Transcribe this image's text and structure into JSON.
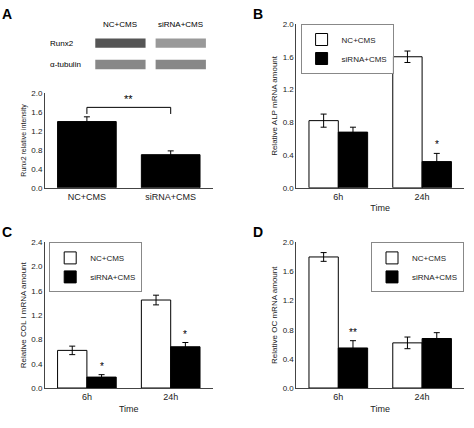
{
  "chart_data": [
    {
      "type": "bar",
      "title": "A",
      "categories": [
        "NC+CMS",
        "siRNA+CMS"
      ],
      "values": [
        1.4,
        0.7
      ],
      "errors": [
        0.1,
        0.08
      ],
      "color": "black",
      "ylabel": "Runx2 relative intensity",
      "ylim": [
        0,
        2.0
      ],
      "yticks": [
        {
          "value": 0.0,
          "label": "0.0"
        },
        0.4,
        0.8,
        1.2,
        1.6,
        {
          "value": 2.0,
          "label": "2.0"
        }
      ],
      "grid": false,
      "annotations": [
        {
          "text": "**",
          "between": [
            "NC+CMS",
            "siRNA+CMS"
          ]
        },
        {
          "text": "Runx2"
        },
        {
          "text": "α-tubulin"
        }
      ]
    },
    {
      "type": "bar",
      "title": "B",
      "categories": [
        "6h",
        "24h"
      ],
      "series": [
        {
          "name": "NC+CMS",
          "color": "white",
          "values": [
            0.82,
            1.6
          ],
          "errors": [
            0.08,
            0.07
          ]
        },
        {
          "name": "siRNA+CMS",
          "color": "black",
          "values": [
            0.68,
            0.32
          ],
          "errors": [
            0.06,
            0.1
          ]
        }
      ],
      "xlabel": "Time",
      "ylabel": "Relative ALP mRNA amount",
      "ylim": [
        0,
        2.0
      ],
      "yticks": [
        {
          "value": 0.0,
          "label": "0.0"
        },
        0.4,
        0.8,
        1.2,
        1.6,
        {
          "value": 2.0,
          "label": "2.0"
        }
      ],
      "grid": false,
      "legend": "upper left",
      "annotations": [
        {
          "text": "*",
          "category": "24h",
          "series": "siRNA+CMS"
        }
      ]
    },
    {
      "type": "bar",
      "title": "C",
      "categories": [
        "6h",
        "24h"
      ],
      "series": [
        {
          "name": "NC+CMS",
          "color": "white",
          "values": [
            0.62,
            1.45
          ],
          "errors": [
            0.07,
            0.08
          ]
        },
        {
          "name": "siRNA+CMS",
          "color": "black",
          "values": [
            0.18,
            0.68
          ],
          "errors": [
            0.04,
            0.07
          ]
        }
      ],
      "xlabel": "Time",
      "ylabel": "Relative COL I mRNA amount",
      "ylim": [
        0,
        2.4
      ],
      "yticks": [
        {
          "value": 0.0,
          "label": "0.0"
        },
        0.4,
        0.8,
        1.2,
        1.6,
        {
          "value": 2.0,
          "label": "2.0"
        },
        2.4
      ],
      "grid": false,
      "legend": "upper left",
      "annotations": [
        {
          "text": "*",
          "category": "6h",
          "series": "siRNA+CMS"
        },
        {
          "text": "*",
          "category": "24h",
          "series": "siRNA+CMS"
        }
      ]
    },
    {
      "type": "bar",
      "title": "D",
      "categories": [
        "6h",
        "24h"
      ],
      "series": [
        {
          "name": "NC+CMS",
          "color": "white",
          "values": [
            1.8,
            0.62
          ],
          "errors": [
            0.06,
            0.08
          ]
        },
        {
          "name": "siRNA+CMS",
          "color": "black",
          "values": [
            0.55,
            0.68
          ],
          "errors": [
            0.1,
            0.08
          ]
        }
      ],
      "xlabel": "Time",
      "ylabel": "Relative OC mRNA amount",
      "ylim": [
        0,
        2.0
      ],
      "yticks": [
        {
          "value": 0.0,
          "label": "0.0"
        },
        0.4,
        0.8,
        1.2,
        1.6,
        {
          "value": 2.0,
          "label": "2.0"
        }
      ],
      "grid": false,
      "legend": "upper right",
      "annotations": [
        {
          "text": "**",
          "category": "6h",
          "series": "siRNA+CMS"
        }
      ]
    }
  ]
}
